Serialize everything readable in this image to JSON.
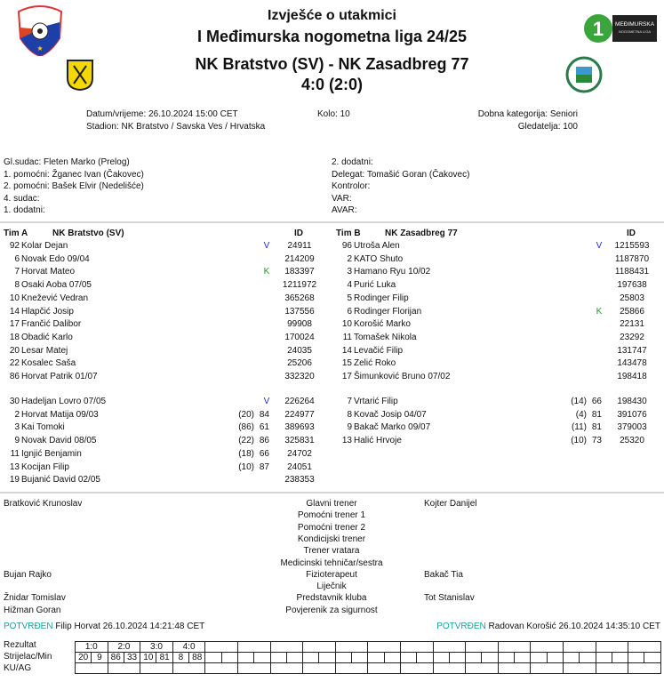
{
  "header": {
    "title": "Izvješće o utakmici",
    "league": "I Međimurska nogometna liga 24/25",
    "teams": "NK Bratstvo (SV) - NK Zasadbreg 77",
    "score": "4:0 (2:0)",
    "logos": [
      "medjimurski-nogometni-savez-logo",
      "nk-bratstvo-logo",
      "1-medjimurska-liga-logo",
      "nk-zasadbreg-logo"
    ],
    "league_logo_text": "MEĐIMURSKA NOGOMETNA LIGA"
  },
  "info": {
    "datetime": "Datum/vrijeme: 26.10.2024 15:00 CET",
    "round": "Kolo: 10",
    "category": "Dobna kategorija: Seniori",
    "stadium": "Stadion: NK Bratstvo / Savska Ves / Hrvatska",
    "attendance": "Gledatelja: 100"
  },
  "officials": {
    "left": [
      "Gl.sudac: Fleten Marko (Prelog)",
      "1. pomoćni: Žganec Ivan (Čakovec)",
      "2. pomoćni: Bašek Elvir (Nedelišće)",
      "4. sudac:",
      "1. dodatni:"
    ],
    "right": [
      "2. dodatni:",
      "Delegat: Tomašić Goran (Čakovec)",
      "Kontrolor:",
      "VAR:",
      "AVAR:"
    ]
  },
  "team_a": {
    "label": "Tim A",
    "name": "NK Bratstvo (SV)",
    "id_header": "ID",
    "starters": [
      {
        "num": "92",
        "name": "Kolar Dejan",
        "mark": "V",
        "id": "24911"
      },
      {
        "num": "6",
        "name": "Novak Edo 09/04",
        "id": "214209"
      },
      {
        "num": "7",
        "name": "Horvat Mateo",
        "mark": "K",
        "id": "183397"
      },
      {
        "num": "8",
        "name": "Osaki Aoba 07/05",
        "id": "1211972"
      },
      {
        "num": "10",
        "name": "Knežević Vedran",
        "id": "365268"
      },
      {
        "num": "14",
        "name": "Hlapčić Josip",
        "id": "137556"
      },
      {
        "num": "17",
        "name": "Frančić Dalibor",
        "id": "99908"
      },
      {
        "num": "18",
        "name": "Obadić Karlo",
        "id": "170024"
      },
      {
        "num": "20",
        "name": "Lesar Matej",
        "id": "24035"
      },
      {
        "num": "22",
        "name": "Kosalec Saša",
        "id": "25206"
      },
      {
        "num": "86",
        "name": "Horvat Patrik 01/07",
        "id": "332320"
      }
    ],
    "subs": [
      {
        "num": "30",
        "name": "Hadeljan Lovro 07/05",
        "mark": "V",
        "id": "226264"
      },
      {
        "num": "2",
        "name": "Horvat Matija 09/03",
        "replaced": "(20)",
        "minute": "84",
        "id": "224977"
      },
      {
        "num": "3",
        "name": "Kai Tomoki",
        "replaced": "(86)",
        "minute": "61",
        "id": "389693"
      },
      {
        "num": "9",
        "name": "Novak David 08/05",
        "replaced": "(22)",
        "minute": "86",
        "id": "325831"
      },
      {
        "num": "11",
        "name": "Ignjić Benjamin",
        "replaced": "(18)",
        "minute": "66",
        "id": "24702"
      },
      {
        "num": "13",
        "name": "Kocijan Filip",
        "replaced": "(10)",
        "minute": "87",
        "id": "24051"
      },
      {
        "num": "19",
        "name": "Bujanić David 02/05",
        "id": "238353"
      }
    ]
  },
  "team_b": {
    "label": "Tim B",
    "name": "NK Zasadbreg 77",
    "id_header": "ID",
    "starters": [
      {
        "num": "96",
        "name": "Utroša Alen",
        "mark": "V",
        "id": "1215593"
      },
      {
        "num": "2",
        "name": "KATO Shuto",
        "id": "1187870"
      },
      {
        "num": "3",
        "name": "Hamano Ryu 10/02",
        "id": "1188431"
      },
      {
        "num": "4",
        "name": "Purić Luka",
        "id": "197638"
      },
      {
        "num": "5",
        "name": "Rodinger Filip",
        "id": "25803"
      },
      {
        "num": "6",
        "name": "Rodinger Florijan",
        "mark": "K",
        "id": "25866"
      },
      {
        "num": "10",
        "name": "Korošić Marko",
        "id": "22131"
      },
      {
        "num": "11",
        "name": "Tomašek Nikola",
        "id": "23292"
      },
      {
        "num": "14",
        "name": "Levačić Filip",
        "id": "131747"
      },
      {
        "num": "15",
        "name": "Zelić Roko",
        "id": "143478"
      },
      {
        "num": "17",
        "name": "Šimunković Bruno 07/02",
        "id": "198418"
      }
    ],
    "subs": [
      {
        "num": "7",
        "name": "Vrtarić Filip",
        "replaced": "(14)",
        "minute": "66",
        "id": "198430"
      },
      {
        "num": "8",
        "name": "Kovač Josip 04/07",
        "replaced": "(4)",
        "minute": "81",
        "id": "391076"
      },
      {
        "num": "9",
        "name": "Bakač Marko 09/07",
        "replaced": "(11)",
        "minute": "81",
        "id": "379003"
      },
      {
        "num": "13",
        "name": "Halić Hrvoje",
        "replaced": "(10)",
        "minute": "73",
        "id": "25320"
      }
    ]
  },
  "staff": [
    {
      "left": "Bratković Krunoslav",
      "role": "Glavni trener",
      "right": "Kojter Danijel"
    },
    {
      "left": "",
      "role": "Pomoćni trener 1",
      "right": ""
    },
    {
      "left": "",
      "role": "Pomoćni trener 2",
      "right": ""
    },
    {
      "left": "",
      "role": "Kondicijski trener",
      "right": ""
    },
    {
      "left": "",
      "role": "Trener vratara",
      "right": ""
    },
    {
      "left": "",
      "role": "Medicinski tehničar/sestra",
      "right": ""
    },
    {
      "left": "Bujan Rajko",
      "role": "Fizioterapeut",
      "right": "Bakač Tia"
    },
    {
      "left": "",
      "role": "Liječnik",
      "right": ""
    },
    {
      "left": "Žnidar Tomislav",
      "role": "Predstavnik kluba",
      "right": "Tot Stanislav"
    },
    {
      "left": "Hižman Goran",
      "role": "Povjerenik za sigurnost",
      "right": ""
    }
  ],
  "confirmations": {
    "left_status": "POTVRĐEN",
    "left_text": "Filip Horvat 26.10.2024 14:21:48 CET",
    "right_status": "POTVRĐEN",
    "right_text": "Radovan Korošić 26.10.2024 14:35:10 CET",
    "status_color": "#1aa0a0"
  },
  "goals_grid": {
    "row_labels": [
      "Rezultat",
      "Strijelac/Min",
      "KU/AG"
    ],
    "results": [
      "1:0",
      "2:0",
      "3:0",
      "4:0"
    ],
    "scorers": [
      [
        "20",
        "9"
      ],
      [
        "86",
        "33"
      ],
      [
        "10",
        "81"
      ],
      [
        "8",
        "88"
      ]
    ]
  },
  "colors": {
    "captain_v": "#2a2acc",
    "captain_k": "#1a9a1a"
  }
}
